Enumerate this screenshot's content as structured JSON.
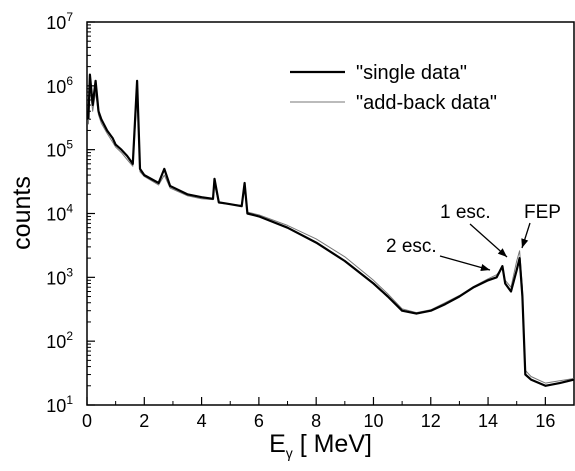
{
  "chart_data": {
    "type": "line",
    "x_label": "E_γ [ MeV]",
    "y_label": "counts",
    "log_y": true,
    "grid": false,
    "legend": "top-right",
    "xlim": [
      0,
      17
    ],
    "ylim": [
      10,
      10000000
    ],
    "xticks": [
      0,
      2,
      4,
      6,
      8,
      10,
      12,
      14,
      16
    ],
    "yticks": [
      {
        "value": 10,
        "label": "10^1"
      },
      {
        "value": 100,
        "label": "10^2"
      },
      {
        "value": 1000,
        "label": "10^3"
      },
      {
        "value": 10000,
        "label": "10^4"
      },
      {
        "value": 100000,
        "label": "10^5"
      },
      {
        "value": 1000000,
        "label": "10^6"
      },
      {
        "value": 10000000,
        "label": "10^7"
      }
    ],
    "x": [
      0.05,
      0.1,
      0.2,
      0.3,
      0.4,
      0.5,
      0.7,
      0.9,
      1.0,
      1.2,
      1.4,
      1.6,
      1.75,
      1.85,
      2.0,
      2.5,
      2.7,
      2.9,
      3.5,
      4.0,
      4.4,
      4.45,
      4.6,
      5.0,
      5.4,
      5.5,
      5.6,
      6.0,
      7.0,
      8.0,
      9.0,
      10.0,
      10.5,
      11.0,
      11.5,
      12.0,
      12.5,
      13.0,
      13.5,
      14.0,
      14.3,
      14.5,
      14.6,
      14.8,
      15.0,
      15.1,
      15.2,
      15.3,
      15.5,
      16.0,
      16.5,
      17.0
    ],
    "series": [
      {
        "name": "\"single data\"",
        "color": "#000000",
        "width": 2.2,
        "values": [
          300000,
          1500000,
          500000,
          1200000,
          400000,
          300000,
          200000,
          150000,
          120000,
          100000,
          80000,
          60000,
          1200000,
          50000,
          40000,
          30000,
          50000,
          27000,
          20000,
          18000,
          17000,
          35000,
          15000,
          14000,
          13000,
          30000,
          10000,
          9000,
          6000,
          3500,
          1800,
          800,
          500,
          300,
          270,
          300,
          380,
          500,
          700,
          900,
          1000,
          1500,
          800,
          600,
          1300,
          2000,
          500,
          30,
          25,
          20,
          22,
          25
        ]
      },
      {
        "name": "\"add-back data\"",
        "color": "#777777",
        "width": 1,
        "values": [
          250000,
          1000000,
          400000,
          800000,
          350000,
          260000,
          180000,
          130000,
          110000,
          90000,
          70000,
          55000,
          700000,
          45000,
          38000,
          28000,
          40000,
          25000,
          19000,
          17000,
          16500,
          28000,
          14500,
          14000,
          13500,
          25000,
          10500,
          9500,
          6500,
          4000,
          2100,
          900,
          550,
          320,
          280,
          310,
          400,
          520,
          720,
          950,
          1100,
          1400,
          900,
          700,
          1800,
          2600,
          700,
          35,
          28,
          22,
          24,
          26
        ]
      }
    ],
    "annotations": [
      {
        "text": "1 esc."
      },
      {
        "text": "2 esc."
      },
      {
        "text": "FEP"
      }
    ]
  }
}
